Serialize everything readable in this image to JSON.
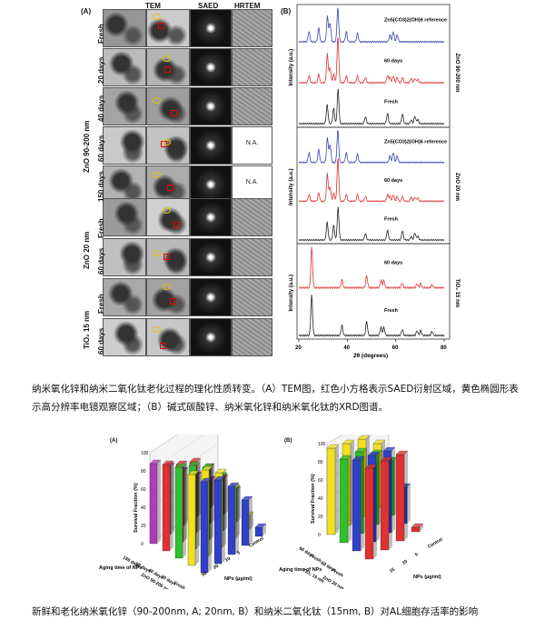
{
  "figure1": {
    "panel_a_label": "(A)",
    "panel_b_label": "(B)",
    "col_headers": [
      "TEM",
      "SAED",
      "HRTEM"
    ],
    "na_label": "N.A.",
    "groups": [
      {
        "name": "ZnO 90-200 nm",
        "rows": [
          "Fresh",
          "20 days",
          "40 days",
          "60 days",
          "150 days"
        ]
      },
      {
        "name": "ZnO 20 nm",
        "rows": [
          "Fresh",
          "60 days"
        ]
      },
      {
        "name": "TiO₂ 15 nm",
        "rows": [
          "Fresh",
          "60 days"
        ]
      }
    ],
    "xrd": {
      "ylabel": "Intensity (a.u.)",
      "xlabel": "2θ (degrees)",
      "xticks": [
        "20",
        "40",
        "60",
        "80"
      ],
      "panels": [
        {
          "side": "ZnO 90-200 nm",
          "traces": [
            "Zn5(CO3)2(OH)6 reference",
            "60 days",
            "Fresh"
          ]
        },
        {
          "side": "ZnO 20 nm",
          "traces": [
            "Zn5(CO3)2(OH)6 reference",
            "60 days",
            "Fresh"
          ]
        },
        {
          "side": "TiO₂ 15 nm",
          "traces": [
            "60 days",
            "Fresh"
          ]
        }
      ]
    },
    "caption": "纳米氧化锌和纳米二氧化钛老化过程的理化性质转变。（A）TEM图，红色小方格表示SAED衍射区域，黄色椭圆形表示高分辨率电镜观察区域；（B）碱式碳酸锌、纳米氧化锌和纳米氧化钛的XRD图谱。"
  },
  "figure2": {
    "panel_a_label": "(A)",
    "panel_b_label": "(B)",
    "zlabel": "Survival Fraction (%)",
    "zticks": [
      "0",
      "20",
      "40",
      "60",
      "80",
      "100"
    ],
    "nps_label": "NPs (μg/ml)",
    "aging_label": "Aging time of NPs",
    "chart_a": {
      "dose_ticks": [
        "Control",
        "5",
        "10",
        "20",
        "50"
      ],
      "age_ticks": [
        "150 days",
        "60 days",
        "40 days",
        "20 days",
        "Fresh"
      ],
      "group_label": "ZnO 90-200 nm"
    },
    "chart_b": {
      "dose_ticks": [
        "Control",
        "5",
        "10",
        "15"
      ],
      "age_ticks": [
        "60 days",
        "Fresh",
        "60 days",
        "Fresh"
      ],
      "group_labels": [
        "TiO₂ 15 nm",
        "ZnO 20 nm"
      ]
    },
    "caption": "新鲜和老化纳米氧化锌（90-200nm, A; 20nm, B）和纳米二氧化钛（15nm, B）对AL细胞存活率的影响"
  }
}
